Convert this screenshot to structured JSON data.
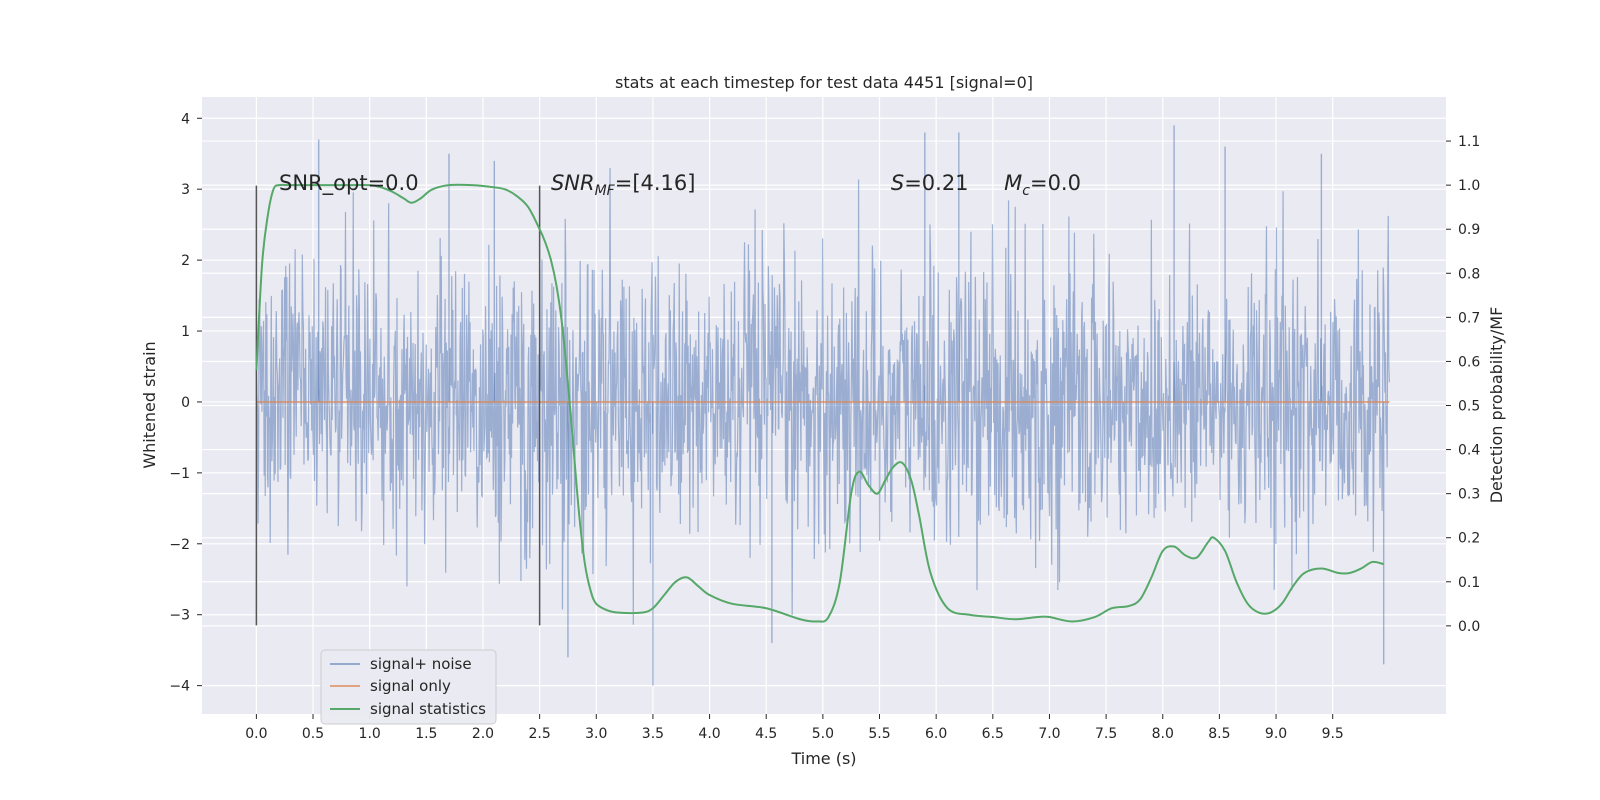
{
  "chart_data": {
    "type": "line",
    "title": "stats at each timestep for test data 4451 [signal=0]",
    "xlabel": "Time (s)",
    "ylabel": "Whitened strain",
    "y2label": "Detection probability/MF",
    "xlim": [
      -0.48,
      10.5
    ],
    "ylim": [
      -4.4,
      4.3
    ],
    "y2lim": [
      -0.2,
      1.2
    ],
    "xticks": [
      0.0,
      0.5,
      1.0,
      1.5,
      2.0,
      2.5,
      3.0,
      3.5,
      4.0,
      4.5,
      5.0,
      5.5,
      6.0,
      6.5,
      7.0,
      7.5,
      8.0,
      8.5,
      9.0,
      9.5
    ],
    "xtick_labels": [
      "0.0",
      "0.5",
      "1.0",
      "1.5",
      "2.0",
      "2.5",
      "3.0",
      "3.5",
      "4.0",
      "4.5",
      "5.0",
      "5.5",
      "6.0",
      "6.5",
      "7.0",
      "7.5",
      "8.0",
      "8.5",
      "9.0",
      "9.5"
    ],
    "yticks": [
      -4,
      -3,
      -2,
      -1,
      0,
      1,
      2,
      3,
      4
    ],
    "ytick_labels": [
      "−4",
      "−3",
      "−2",
      "−1",
      "0",
      "1",
      "2",
      "3",
      "4"
    ],
    "y2ticks": [
      0.0,
      0.1,
      0.2,
      0.3,
      0.4,
      0.5,
      0.6,
      0.7,
      0.8,
      0.9,
      1.0,
      1.1
    ],
    "y2tick_labels": [
      "0.0",
      "0.1",
      "0.2",
      "0.3",
      "0.4",
      "0.5",
      "0.6",
      "0.7",
      "0.8",
      "0.9",
      "1.0",
      "1.1"
    ],
    "grid": true,
    "legend_position": "bottom-left",
    "annotations": [
      {
        "name": "snr-opt",
        "text": "SNR_opt=0.0",
        "x": 0.2,
        "y": 3.1
      },
      {
        "name": "snr-mf",
        "text": "=[4.16]",
        "math": "SNR",
        "sub": "MF",
        "x": 2.6,
        "y": 3.1
      },
      {
        "name": "s-value",
        "text": "=0.21",
        "math": "S",
        "sub": "",
        "x": 5.6,
        "y": 3.1
      },
      {
        "name": "mc-value",
        "text": "=0.0",
        "math": "M",
        "sub": "c",
        "x": 6.6,
        "y": 3.1
      }
    ],
    "vlines": [
      {
        "x": 0.0,
        "ymin": -3.15,
        "ymax": 3.05
      },
      {
        "x": 2.5,
        "ymin": -3.15,
        "ymax": 3.05
      }
    ],
    "series": [
      {
        "name": "signal+ noise",
        "axis": "left",
        "color": "#4c72b0",
        "opacity": 0.5,
        "style": "noise",
        "x_range": [
          0.0,
          10.0
        ],
        "samples": 2048,
        "sigma": 1.0,
        "extremes": [
          {
            "x": 0.55,
            "y": 3.7
          },
          {
            "x": 1.7,
            "y": 3.5
          },
          {
            "x": 2.1,
            "y": 3.4
          },
          {
            "x": 5.9,
            "y": 3.8
          },
          {
            "x": 6.2,
            "y": 3.8
          },
          {
            "x": 8.1,
            "y": 3.9
          },
          {
            "x": 8.55,
            "y": 3.6
          },
          {
            "x": 9.4,
            "y": 3.5
          },
          {
            "x": 3.5,
            "y": -4.0
          },
          {
            "x": 9.95,
            "y": -3.7
          },
          {
            "x": 2.75,
            "y": -3.6
          },
          {
            "x": 4.55,
            "y": -3.4
          }
        ]
      },
      {
        "name": "signal only",
        "axis": "left",
        "color": "#dd8452",
        "opacity": 0.7,
        "x": [
          0.0,
          10.0
        ],
        "y": [
          0.0,
          0.0
        ]
      },
      {
        "name": "signal statistics",
        "axis": "right",
        "color": "#55a868",
        "opacity": 1.0,
        "x": [
          0.0,
          0.05,
          0.1,
          0.15,
          0.2,
          0.3,
          0.5,
          0.8,
          1.0,
          1.1,
          1.2,
          1.3,
          1.37,
          1.45,
          1.55,
          1.7,
          1.9,
          2.1,
          2.2,
          2.3,
          2.4,
          2.5,
          2.55,
          2.6,
          2.65,
          2.7,
          2.75,
          2.8,
          2.85,
          2.9,
          2.95,
          3.0,
          3.1,
          3.2,
          3.4,
          3.5,
          3.6,
          3.7,
          3.8,
          3.9,
          4.0,
          4.2,
          4.5,
          4.8,
          4.95,
          5.05,
          5.15,
          5.25,
          5.32,
          5.4,
          5.48,
          5.55,
          5.62,
          5.7,
          5.78,
          5.85,
          5.95,
          6.1,
          6.3,
          6.5,
          6.7,
          6.9,
          7.0,
          7.2,
          7.4,
          7.55,
          7.7,
          7.8,
          7.9,
          8.0,
          8.1,
          8.2,
          8.3,
          8.4,
          8.45,
          8.55,
          8.65,
          8.75,
          8.85,
          8.95,
          9.05,
          9.15,
          9.25,
          9.4,
          9.55,
          9.65,
          9.75,
          9.85,
          9.95
        ],
        "y": [
          0.58,
          0.82,
          0.93,
          0.99,
          1.0,
          1.0,
          1.0,
          1.0,
          1.0,
          0.995,
          0.985,
          0.97,
          0.96,
          0.97,
          0.99,
          1.0,
          1.0,
          0.995,
          0.99,
          0.975,
          0.95,
          0.9,
          0.87,
          0.83,
          0.77,
          0.68,
          0.55,
          0.4,
          0.25,
          0.14,
          0.08,
          0.05,
          0.035,
          0.03,
          0.03,
          0.04,
          0.07,
          0.1,
          0.11,
          0.09,
          0.07,
          0.05,
          0.04,
          0.015,
          0.01,
          0.02,
          0.1,
          0.3,
          0.35,
          0.32,
          0.3,
          0.33,
          0.36,
          0.37,
          0.33,
          0.25,
          0.12,
          0.04,
          0.025,
          0.02,
          0.015,
          0.02,
          0.02,
          0.01,
          0.02,
          0.04,
          0.045,
          0.06,
          0.11,
          0.17,
          0.18,
          0.16,
          0.155,
          0.19,
          0.2,
          0.17,
          0.1,
          0.05,
          0.03,
          0.03,
          0.05,
          0.09,
          0.12,
          0.13,
          0.12,
          0.12,
          0.13,
          0.145,
          0.14
        ]
      }
    ]
  }
}
